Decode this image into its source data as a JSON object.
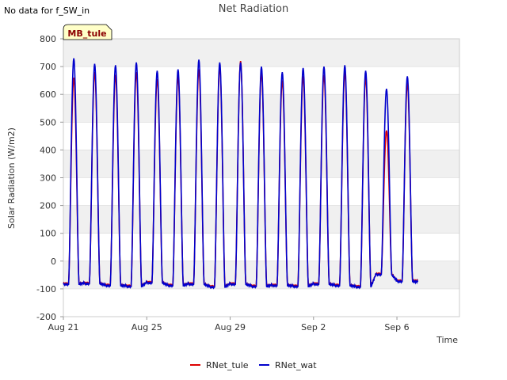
{
  "no_data_note": "No data for f_SW_in",
  "site_badge": "MB_tule",
  "colors": {
    "RNet_tule": "#dd0000",
    "RNet_wat": "#0000cc",
    "band": "#f0f0f0",
    "grid": "#d8d8d8",
    "badge_fill": "#ffffc8"
  },
  "chart_data": {
    "type": "line",
    "title": "Net Radiation",
    "xlabel": "Time",
    "ylabel": "Solar Radiation (W/m2)",
    "ylim": [
      -200,
      800
    ],
    "xlim": [
      "2023-08-21",
      "2023-09-09"
    ],
    "grid": true,
    "legend_position": "bottom",
    "y_ticks": [
      "-200",
      "-100",
      "0",
      "100",
      "200",
      "300",
      "400",
      "500",
      "600",
      "700",
      "800"
    ],
    "x_ticks": [
      {
        "label": "Aug 21",
        "date": "2023-08-21"
      },
      {
        "label": "Aug 25",
        "date": "2023-08-25"
      },
      {
        "label": "Aug 29",
        "date": "2023-08-29"
      },
      {
        "label": "Sep 2",
        "date": "2023-09-02"
      },
      {
        "label": "Sep 6",
        "date": "2023-09-06"
      }
    ],
    "daily_peaks": [
      {
        "date": "2023-08-21",
        "RNet_tule": 660,
        "RNet_wat": 730,
        "night": -80
      },
      {
        "date": "2023-08-22",
        "RNet_tule": 680,
        "RNet_wat": 710,
        "night": -78
      },
      {
        "date": "2023-08-23",
        "RNet_tule": 670,
        "RNet_wat": 705,
        "night": -85
      },
      {
        "date": "2023-08-24",
        "RNet_tule": 680,
        "RNet_wat": 715,
        "night": -88
      },
      {
        "date": "2023-08-25",
        "RNet_tule": 655,
        "RNet_wat": 685,
        "night": -75
      },
      {
        "date": "2023-08-26",
        "RNet_tule": 665,
        "RNet_wat": 690,
        "night": -85
      },
      {
        "date": "2023-08-27",
        "RNet_tule": 690,
        "RNet_wat": 725,
        "night": -80
      },
      {
        "date": "2023-08-28",
        "RNet_tule": 700,
        "RNet_wat": 715,
        "night": -90
      },
      {
        "date": "2023-08-29",
        "RNet_tule": 720,
        "RNet_wat": 715,
        "night": -80
      },
      {
        "date": "2023-08-30",
        "RNet_tule": 680,
        "RNet_wat": 700,
        "night": -88
      },
      {
        "date": "2023-08-31",
        "RNet_tule": 650,
        "RNet_wat": 680,
        "night": -85
      },
      {
        "date": "2023-09-01",
        "RNet_tule": 665,
        "RNet_wat": 695,
        "night": -88
      },
      {
        "date": "2023-09-02",
        "RNet_tule": 670,
        "RNet_wat": 700,
        "night": -80
      },
      {
        "date": "2023-09-03",
        "RNet_tule": 680,
        "RNet_wat": 705,
        "night": -85
      },
      {
        "date": "2023-09-04",
        "RNet_tule": 660,
        "RNet_wat": 685,
        "night": -90
      },
      {
        "date": "2023-09-05",
        "RNet_tule": 470,
        "RNet_wat": 620,
        "night": -45
      },
      {
        "date": "2023-09-06",
        "RNet_tule": 640,
        "RNet_wat": 665,
        "night": -70
      }
    ],
    "series": [
      {
        "name": "RNet_tule"
      },
      {
        "name": "RNet_wat"
      }
    ]
  }
}
